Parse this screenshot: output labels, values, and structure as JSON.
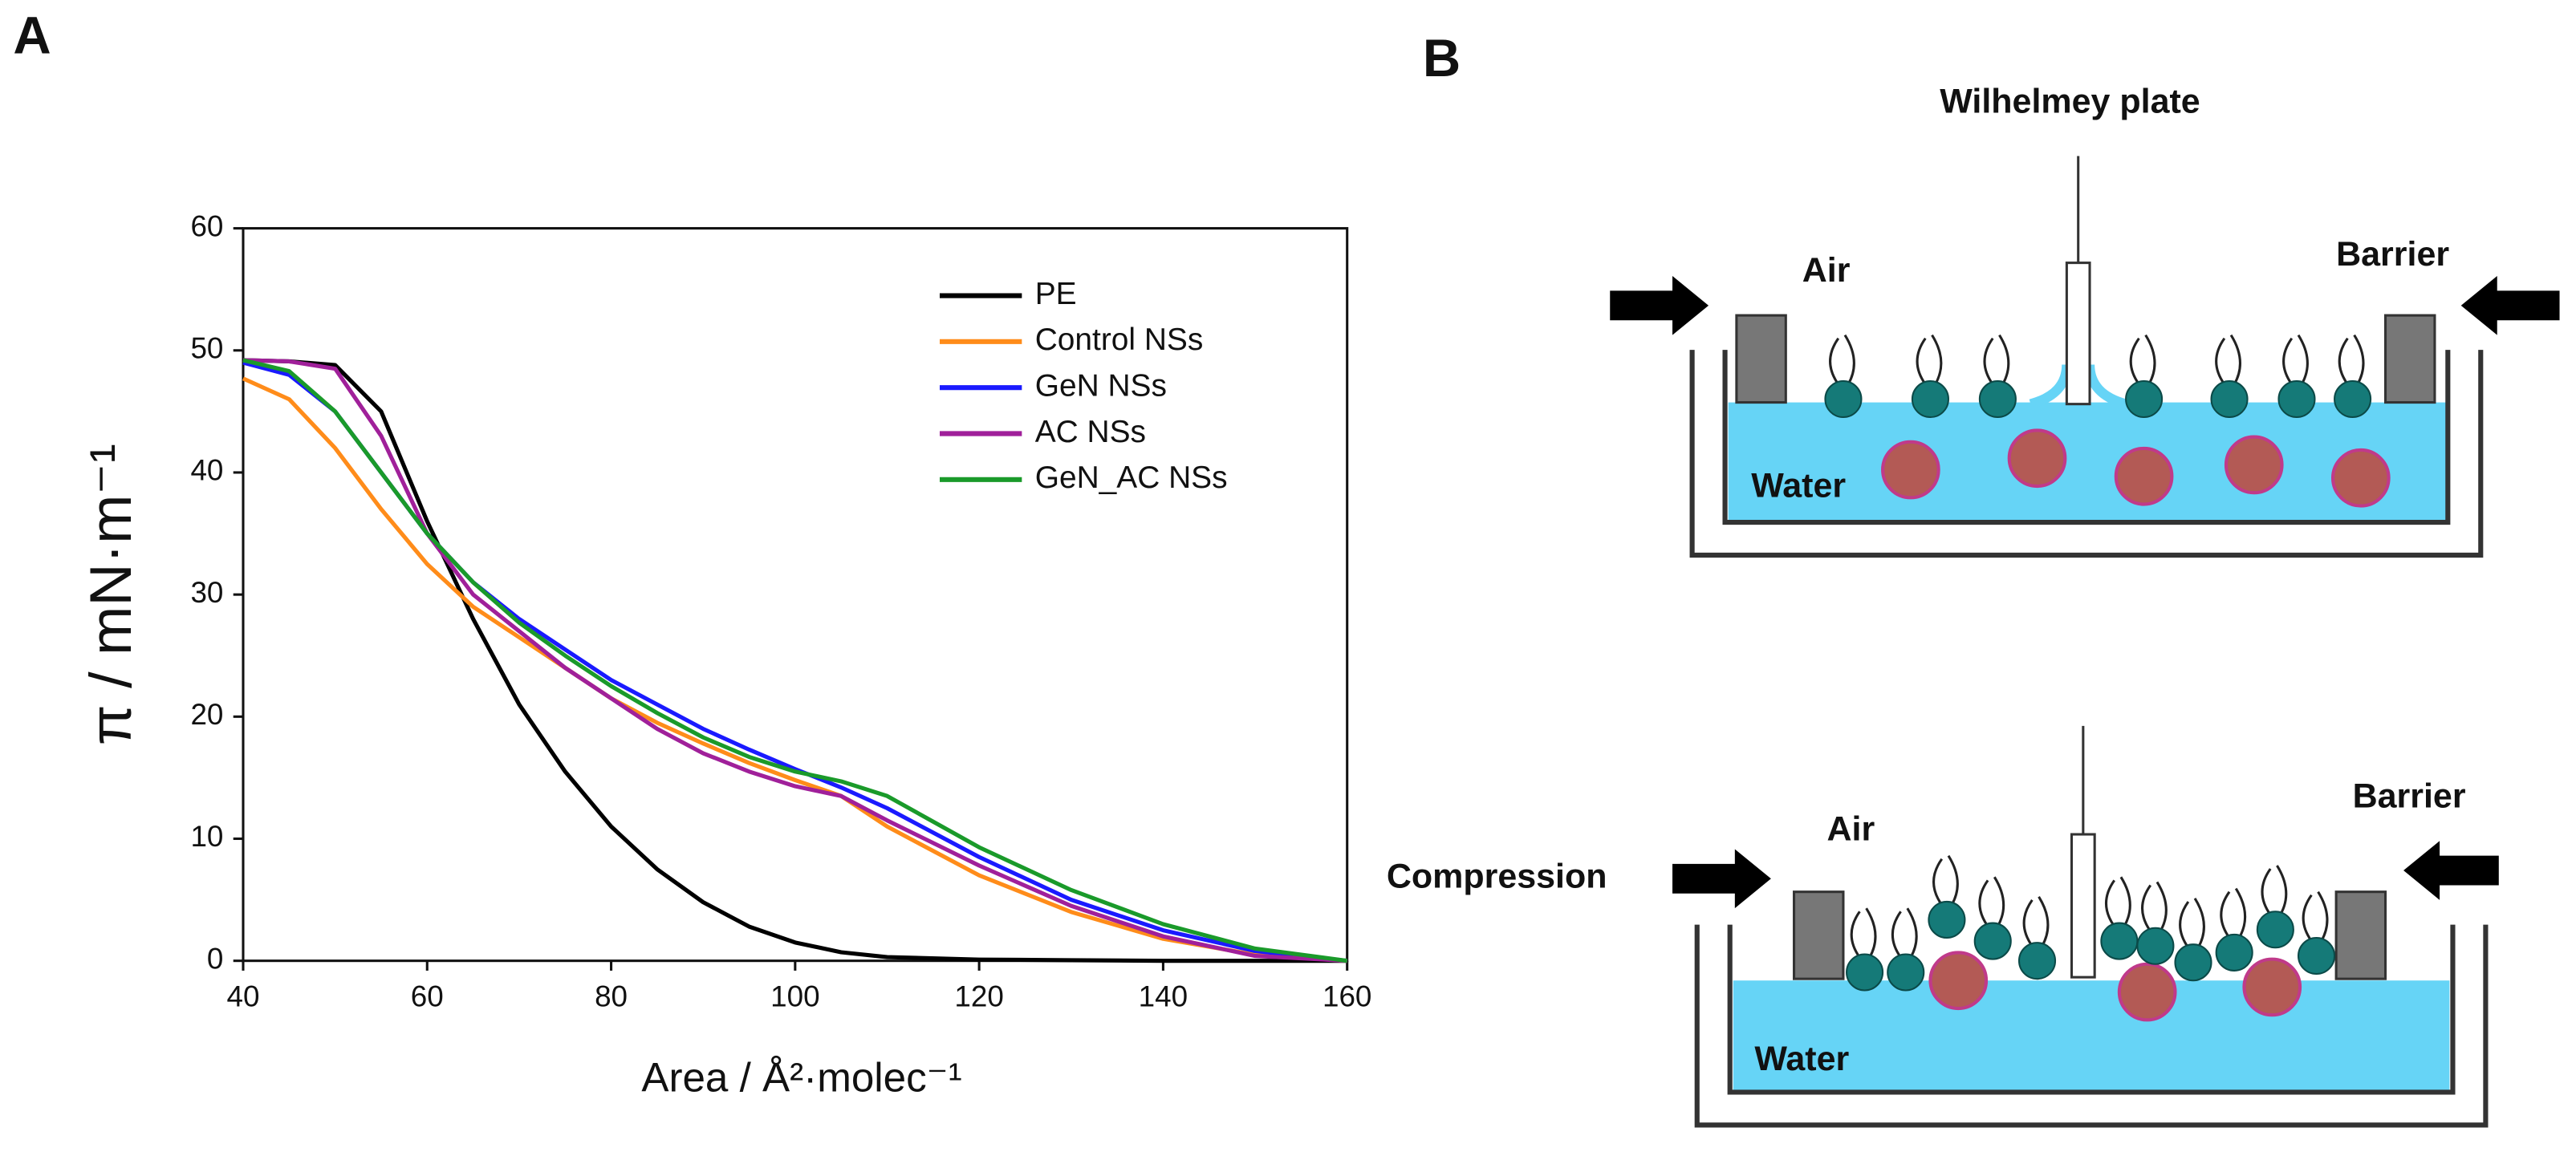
{
  "chart_data": {
    "type": "line",
    "xlabel": "Area / Å²·molec⁻¹",
    "ylabel": "π / mN·m⁻¹",
    "x": [
      40,
      45,
      50,
      55,
      60,
      65,
      70,
      75,
      80,
      85,
      90,
      95,
      100,
      105,
      110,
      120,
      130,
      140,
      150,
      160
    ],
    "series": [
      {
        "name": "PE",
        "color": "#000000",
        "values": [
          49.2,
          49.1,
          48.8,
          45,
          36,
          28,
          21,
          15.5,
          11,
          7.5,
          4.8,
          2.8,
          1.5,
          0.7,
          0.3,
          0.1,
          0.05,
          0,
          0,
          0
        ]
      },
      {
        "name": "Control NSs",
        "color": "#ff8c1a",
        "values": [
          47.7,
          46,
          42,
          37,
          32.5,
          29,
          26.5,
          24,
          21.5,
          19.5,
          17.8,
          16.2,
          14.8,
          13.5,
          11,
          7,
          4,
          1.8,
          0.5,
          0
        ]
      },
      {
        "name": "GeN NSs",
        "color": "#1a1aff",
        "values": [
          49,
          48,
          45,
          40,
          35,
          31,
          28,
          25.5,
          23,
          21,
          19,
          17.3,
          15.7,
          14.2,
          12.5,
          8.5,
          5,
          2.5,
          0.8,
          0
        ]
      },
      {
        "name": "AC NSs",
        "color": "#a0209a",
        "values": [
          49.2,
          49.1,
          48.5,
          43,
          35,
          30,
          27,
          24,
          21.5,
          19,
          17,
          15.5,
          14.3,
          13.5,
          11.5,
          7.8,
          4.5,
          2,
          0.4,
          0
        ]
      },
      {
        "name": "GeN_AC NSs",
        "color": "#1a9a2a",
        "values": [
          49.2,
          48.3,
          45,
          40,
          35,
          31,
          27.7,
          25,
          22.5,
          20.3,
          18.3,
          16.7,
          15.5,
          14.7,
          13.5,
          9.3,
          5.8,
          3,
          1,
          0
        ]
      }
    ],
    "xlim": [
      40,
      160
    ],
    "xticks": [
      40,
      60,
      80,
      100,
      120,
      140,
      160
    ],
    "ylim": [
      0,
      60
    ],
    "yticks": [
      0,
      10,
      20,
      30,
      40,
      50,
      60
    ],
    "legend": "upper right"
  },
  "panels": [
    "A",
    "B"
  ],
  "diagram": {
    "plate": "Wilhelmey plate",
    "air": "Air",
    "barrier": "Barrier",
    "water": "Water",
    "compression": "Compression"
  }
}
